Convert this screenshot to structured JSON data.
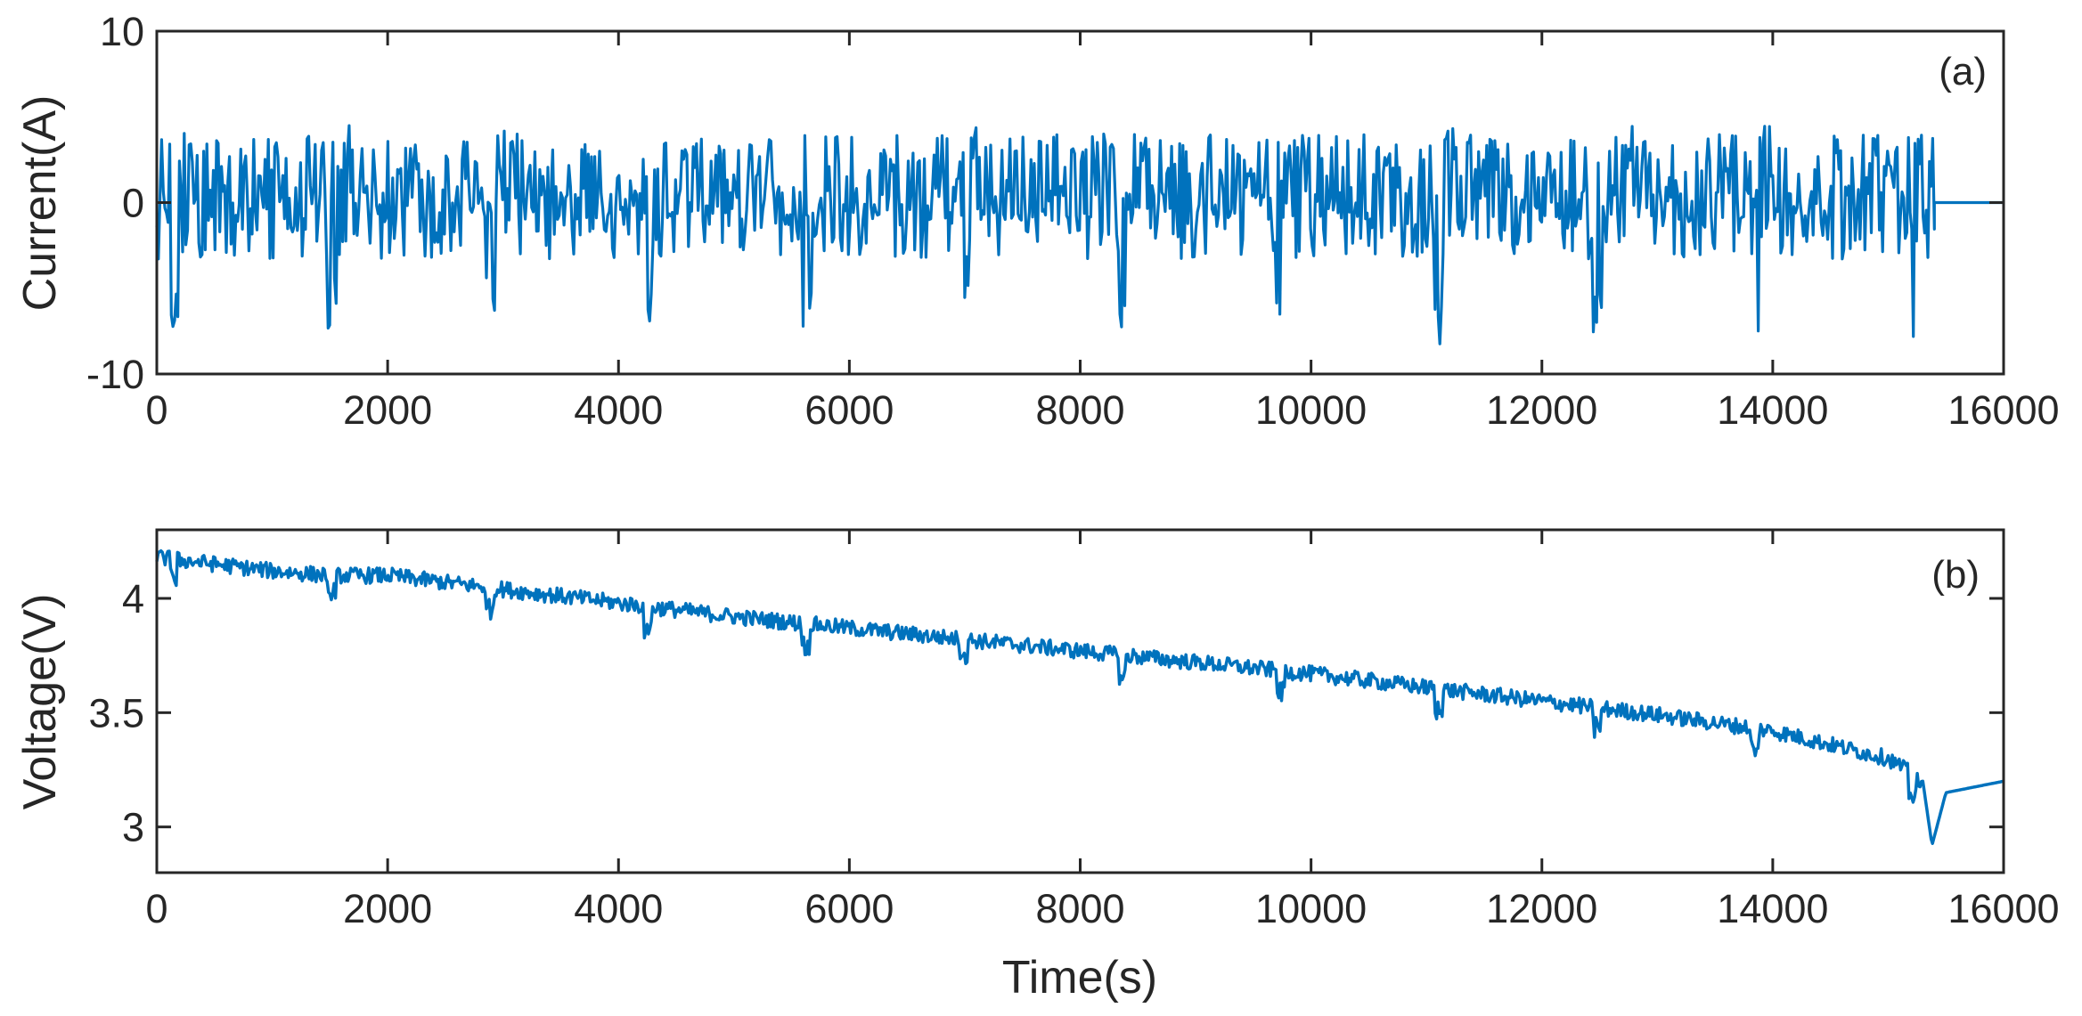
{
  "chart_data": [
    {
      "type": "line",
      "panel_label": "(a)",
      "ylabel": "Current(A)",
      "xlabel": "",
      "xlim": [
        0,
        16000
      ],
      "ylim": [
        -10,
        10
      ],
      "x_ticks": [
        "0",
        "2000",
        "4000",
        "6000",
        "8000",
        "10000",
        "12000",
        "14000",
        "16000"
      ],
      "y_ticks": [
        "-10",
        "0",
        "10"
      ],
      "grid": false,
      "line_color": "#0072BD",
      "profile": {
        "cycle_starts": [
          0,
          1370,
          2740,
          4110,
          5480,
          6850,
          8220,
          9590,
          10960,
          12330,
          13700
        ],
        "cycle_length": 1370,
        "active_end": 15400,
        "rest_value": 0,
        "positive_peak_range": [
          2,
          5.2
        ],
        "negative_peak_range": [
          -9.2,
          -1
        ],
        "typical_band": [
          -3,
          3
        ]
      },
      "series": [
        {
          "values_x": [
            0,
            100,
            200,
            400,
            1500,
            1600,
            2900,
            3000,
            4300,
            4400,
            5700,
            5800,
            7100,
            7200,
            8400,
            8500,
            9800,
            9900,
            11200,
            11300,
            12500,
            12600,
            13900,
            14000,
            15200,
            15300,
            15400,
            16000
          ],
          "values_y": [
            -1,
            3,
            -7,
            4,
            -1,
            -7,
            2,
            -7,
            3,
            -7.5,
            2,
            -7.3,
            3,
            -7.5,
            4,
            -7.8,
            3,
            -8,
            4,
            -8,
            4,
            -8.2,
            4,
            -8.4,
            5.2,
            -9.2,
            0,
            0
          ]
        }
      ]
    },
    {
      "type": "line",
      "panel_label": "(b)",
      "ylabel": "Voltage(V)",
      "xlabel": "Time(s)",
      "xlim": [
        0,
        16000
      ],
      "ylim": [
        2.8,
        4.3
      ],
      "x_ticks": [
        "0",
        "2000",
        "4000",
        "6000",
        "8000",
        "10000",
        "12000",
        "14000",
        "16000"
      ],
      "y_ticks": [
        "3",
        "3.5",
        "4"
      ],
      "grid": false,
      "line_color": "#0072BD",
      "series": [
        {
          "values_x": [
            0,
            500,
            1000,
            1500,
            2000,
            3000,
            4000,
            5000,
            6000,
            7000,
            8000,
            9000,
            10000,
            11000,
            12000,
            13000,
            14000,
            15000,
            15300,
            15380,
            15500,
            16000
          ],
          "values_y": [
            4.18,
            4.15,
            4.12,
            4.1,
            4.1,
            4.04,
            3.98,
            3.92,
            3.87,
            3.82,
            3.77,
            3.72,
            3.67,
            3.61,
            3.55,
            3.49,
            3.42,
            3.3,
            3.2,
            2.92,
            3.15,
            3.2
          ]
        }
      ]
    }
  ]
}
